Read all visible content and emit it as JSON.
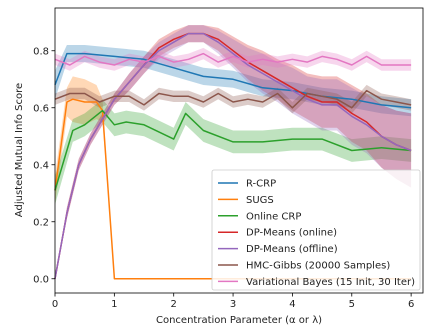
{
  "chart_data": {
    "type": "line",
    "title": "",
    "xlabel": "Concentration Parameter (α or λ)",
    "ylabel": "Adjusted Mutual Info Score",
    "xlim": [
      0,
      6.2
    ],
    "ylim": [
      -0.05,
      0.95
    ],
    "xticks": [
      "0",
      "1",
      "2",
      "3",
      "4",
      "5",
      "6"
    ],
    "yticks": [
      "0.0",
      "0.2",
      "0.4",
      "0.6",
      "0.8"
    ],
    "grid": false,
    "legend_position": "lower-right",
    "series": [
      {
        "name": "R-CRP",
        "color": "#1f77b4",
        "x": [
          0,
          0.2,
          0.5,
          1.0,
          1.5,
          2.0,
          2.5,
          3.0,
          3.5,
          4.0,
          4.5,
          5.0,
          5.5,
          6.0
        ],
        "y": [
          0.68,
          0.79,
          0.79,
          0.78,
          0.77,
          0.74,
          0.71,
          0.7,
          0.67,
          0.66,
          0.64,
          0.63,
          0.61,
          0.6
        ],
        "band": [
          0.05,
          0.03,
          0.03,
          0.03,
          0.03,
          0.03,
          0.03,
          0.03,
          0.03,
          0.03,
          0.03,
          0.03,
          0.03,
          0.03
        ]
      },
      {
        "name": "SUGS",
        "color": "#ff7f0e",
        "x": [
          0,
          0.2,
          0.3,
          0.5,
          0.7,
          0.8,
          1.0,
          1.5,
          2.0,
          3.0,
          4.0,
          5.0,
          6.0
        ],
        "y": [
          0.31,
          0.62,
          0.63,
          0.62,
          0.62,
          0.59,
          0.0,
          0.0,
          0.0,
          0.0,
          0.0,
          0.0,
          0.0
        ],
        "band": [
          0.05,
          0.05,
          0.08,
          0.08,
          0.06,
          0.04,
          0.0,
          0.0,
          0.0,
          0.0,
          0.0,
          0.0,
          0.0
        ]
      },
      {
        "name": "Online CRP",
        "color": "#2ca02c",
        "x": [
          0,
          0.3,
          0.5,
          0.8,
          1.0,
          1.2,
          1.5,
          2.0,
          2.2,
          2.5,
          3.0,
          3.5,
          4.0,
          4.5,
          5.0,
          5.5,
          6.0
        ],
        "y": [
          0.31,
          0.52,
          0.54,
          0.59,
          0.54,
          0.55,
          0.54,
          0.49,
          0.58,
          0.52,
          0.48,
          0.48,
          0.49,
          0.49,
          0.45,
          0.46,
          0.45
        ],
        "band": [
          0.05,
          0.04,
          0.04,
          0.04,
          0.04,
          0.04,
          0.04,
          0.04,
          0.04,
          0.04,
          0.04,
          0.04,
          0.04,
          0.04,
          0.04,
          0.04,
          0.04
        ]
      },
      {
        "name": "DP-Means (online)",
        "color": "#d62728",
        "x": [
          0,
          0.2,
          0.4,
          0.6,
          0.8,
          1.0,
          1.25,
          1.5,
          1.75,
          2.0,
          2.25,
          2.5,
          2.75,
          3.0,
          3.25,
          3.5,
          3.75,
          4.0,
          4.25,
          4.5,
          4.75,
          5.0,
          5.25,
          5.5,
          5.75,
          6.0
        ],
        "y": [
          0.0,
          0.23,
          0.4,
          0.49,
          0.56,
          0.63,
          0.69,
          0.75,
          0.81,
          0.84,
          0.86,
          0.86,
          0.84,
          0.8,
          0.76,
          0.73,
          0.7,
          0.67,
          0.64,
          0.62,
          0.62,
          0.58,
          0.55,
          0.5,
          0.47,
          0.45
        ],
        "band": [
          0.0,
          0.02,
          0.02,
          0.02,
          0.02,
          0.02,
          0.03,
          0.03,
          0.03,
          0.03,
          0.03,
          0.03,
          0.04,
          0.05,
          0.06,
          0.07,
          0.07,
          0.08,
          0.08,
          0.09,
          0.09,
          0.1,
          0.1,
          0.11,
          0.12,
          0.13
        ]
      },
      {
        "name": "DP-Means (offline)",
        "color": "#9467bd",
        "x": [
          0,
          0.2,
          0.4,
          0.6,
          0.8,
          1.0,
          1.25,
          1.5,
          1.75,
          2.0,
          2.25,
          2.5,
          2.75,
          3.0,
          3.25,
          3.5,
          3.75,
          4.0,
          4.25,
          4.5,
          4.75,
          5.0,
          5.25,
          5.5,
          5.75,
          6.0
        ],
        "y": [
          0.0,
          0.23,
          0.4,
          0.49,
          0.56,
          0.63,
          0.69,
          0.75,
          0.8,
          0.83,
          0.86,
          0.86,
          0.83,
          0.79,
          0.75,
          0.72,
          0.69,
          0.66,
          0.63,
          0.61,
          0.61,
          0.57,
          0.54,
          0.5,
          0.47,
          0.45
        ],
        "band": [
          0.0,
          0.02,
          0.02,
          0.02,
          0.02,
          0.02,
          0.03,
          0.03,
          0.03,
          0.03,
          0.03,
          0.03,
          0.04,
          0.05,
          0.06,
          0.07,
          0.07,
          0.08,
          0.08,
          0.09,
          0.09,
          0.1,
          0.1,
          0.11,
          0.12,
          0.13
        ]
      },
      {
        "name": "HMC-Gibbs (20000 Samples)",
        "color": "#8c564b",
        "x": [
          0,
          0.25,
          0.5,
          0.75,
          1.0,
          1.25,
          1.5,
          1.75,
          2.0,
          2.25,
          2.5,
          2.75,
          3.0,
          3.25,
          3.5,
          3.75,
          4.0,
          4.25,
          4.5,
          4.75,
          5.0,
          5.25,
          5.5,
          5.75,
          6.0
        ],
        "y": [
          0.63,
          0.65,
          0.65,
          0.62,
          0.64,
          0.64,
          0.61,
          0.65,
          0.64,
          0.64,
          0.62,
          0.65,
          0.62,
          0.63,
          0.62,
          0.65,
          0.6,
          0.65,
          0.64,
          0.63,
          0.6,
          0.66,
          0.63,
          0.62,
          0.61
        ],
        "band": [
          0.02,
          0.02,
          0.02,
          0.02,
          0.02,
          0.02,
          0.02,
          0.02,
          0.02,
          0.02,
          0.02,
          0.02,
          0.02,
          0.02,
          0.02,
          0.02,
          0.02,
          0.02,
          0.02,
          0.02,
          0.02,
          0.02,
          0.02,
          0.02,
          0.02
        ]
      },
      {
        "name": "Variational Bayes (15 Init, 30 Iter)",
        "color": "#e377c2",
        "x": [
          0,
          0.25,
          0.5,
          0.75,
          1.0,
          1.25,
          1.5,
          1.75,
          2.0,
          2.25,
          2.5,
          2.75,
          3.0,
          3.25,
          3.5,
          3.75,
          4.0,
          4.25,
          4.5,
          4.75,
          5.0,
          5.25,
          5.5,
          5.75,
          6.0
        ],
        "y": [
          0.77,
          0.75,
          0.78,
          0.76,
          0.75,
          0.77,
          0.76,
          0.78,
          0.76,
          0.77,
          0.79,
          0.76,
          0.78,
          0.76,
          0.77,
          0.76,
          0.77,
          0.76,
          0.78,
          0.77,
          0.75,
          0.78,
          0.75,
          0.75,
          0.75
        ],
        "band": [
          0.02,
          0.02,
          0.02,
          0.02,
          0.02,
          0.02,
          0.02,
          0.02,
          0.02,
          0.02,
          0.02,
          0.02,
          0.02,
          0.02,
          0.02,
          0.02,
          0.02,
          0.02,
          0.02,
          0.02,
          0.02,
          0.02,
          0.02,
          0.02,
          0.02
        ]
      }
    ]
  }
}
